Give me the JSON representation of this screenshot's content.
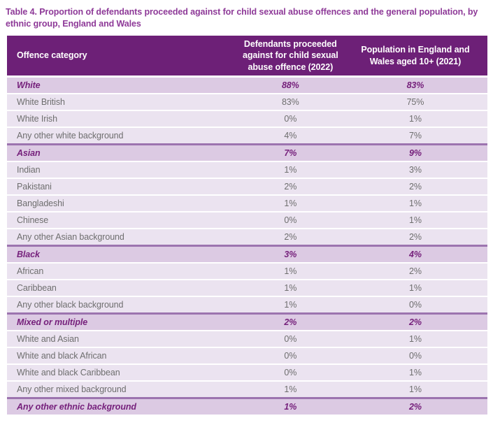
{
  "title": "Table 4. Proportion of defendants proceeded against for child sexual abuse offences and the general population, by ethnic group, England and Wales",
  "table": {
    "columns": [
      "Offence category",
      "Defendants proceeded against for child sexual abuse offence (2022)",
      "Population in England and Wales aged 10+ (2021)"
    ],
    "rows": [
      {
        "label": "White",
        "defendants_2022": "88%",
        "population_2021": "83%",
        "type": "group"
      },
      {
        "label": "White British",
        "defendants_2022": "83%",
        "population_2021": "75%",
        "type": "sub"
      },
      {
        "label": "White Irish",
        "defendants_2022": "0%",
        "population_2021": "1%",
        "type": "sub"
      },
      {
        "label": "Any other white background",
        "defendants_2022": "4%",
        "population_2021": "7%",
        "type": "sub"
      },
      {
        "label": "Asian",
        "defendants_2022": "7%",
        "population_2021": "9%",
        "type": "group"
      },
      {
        "label": "Indian",
        "defendants_2022": "1%",
        "population_2021": "3%",
        "type": "sub"
      },
      {
        "label": "Pakistani",
        "defendants_2022": "2%",
        "population_2021": "2%",
        "type": "sub"
      },
      {
        "label": "Bangladeshi",
        "defendants_2022": "1%",
        "population_2021": "1%",
        "type": "sub"
      },
      {
        "label": "Chinese",
        "defendants_2022": "0%",
        "population_2021": "1%",
        "type": "sub"
      },
      {
        "label": "Any other Asian background",
        "defendants_2022": "2%",
        "population_2021": "2%",
        "type": "sub"
      },
      {
        "label": "Black",
        "defendants_2022": "3%",
        "population_2021": "4%",
        "type": "group"
      },
      {
        "label": "African",
        "defendants_2022": "1%",
        "population_2021": "2%",
        "type": "sub"
      },
      {
        "label": "Caribbean",
        "defendants_2022": "1%",
        "population_2021": "1%",
        "type": "sub"
      },
      {
        "label": "Any other black background",
        "defendants_2022": "1%",
        "population_2021": "0%",
        "type": "sub"
      },
      {
        "label": "Mixed or multiple",
        "defendants_2022": "2%",
        "population_2021": "2%",
        "type": "group"
      },
      {
        "label": "White and Asian",
        "defendants_2022": "0%",
        "population_2021": "1%",
        "type": "sub"
      },
      {
        "label": "White and black African",
        "defendants_2022": "0%",
        "population_2021": "0%",
        "type": "sub"
      },
      {
        "label": "White and black Caribbean",
        "defendants_2022": "0%",
        "population_2021": "1%",
        "type": "sub"
      },
      {
        "label": "Any other mixed background",
        "defendants_2022": "1%",
        "population_2021": "1%",
        "type": "sub"
      },
      {
        "label": "Any other ethnic background",
        "defendants_2022": "1%",
        "population_2021": "2%",
        "type": "group"
      }
    ]
  },
  "colors": {
    "title_text": "#8e3a98",
    "header_bg": "#6d2077",
    "header_text": "#ffffff",
    "group_row_bg": "#dccae3",
    "group_row_text": "#76217c",
    "sub_row_bg": "#ebe3f0",
    "sub_row_text": "#6e6e6e",
    "section_border": "#9c74af",
    "row_separator": "#ffffff"
  }
}
